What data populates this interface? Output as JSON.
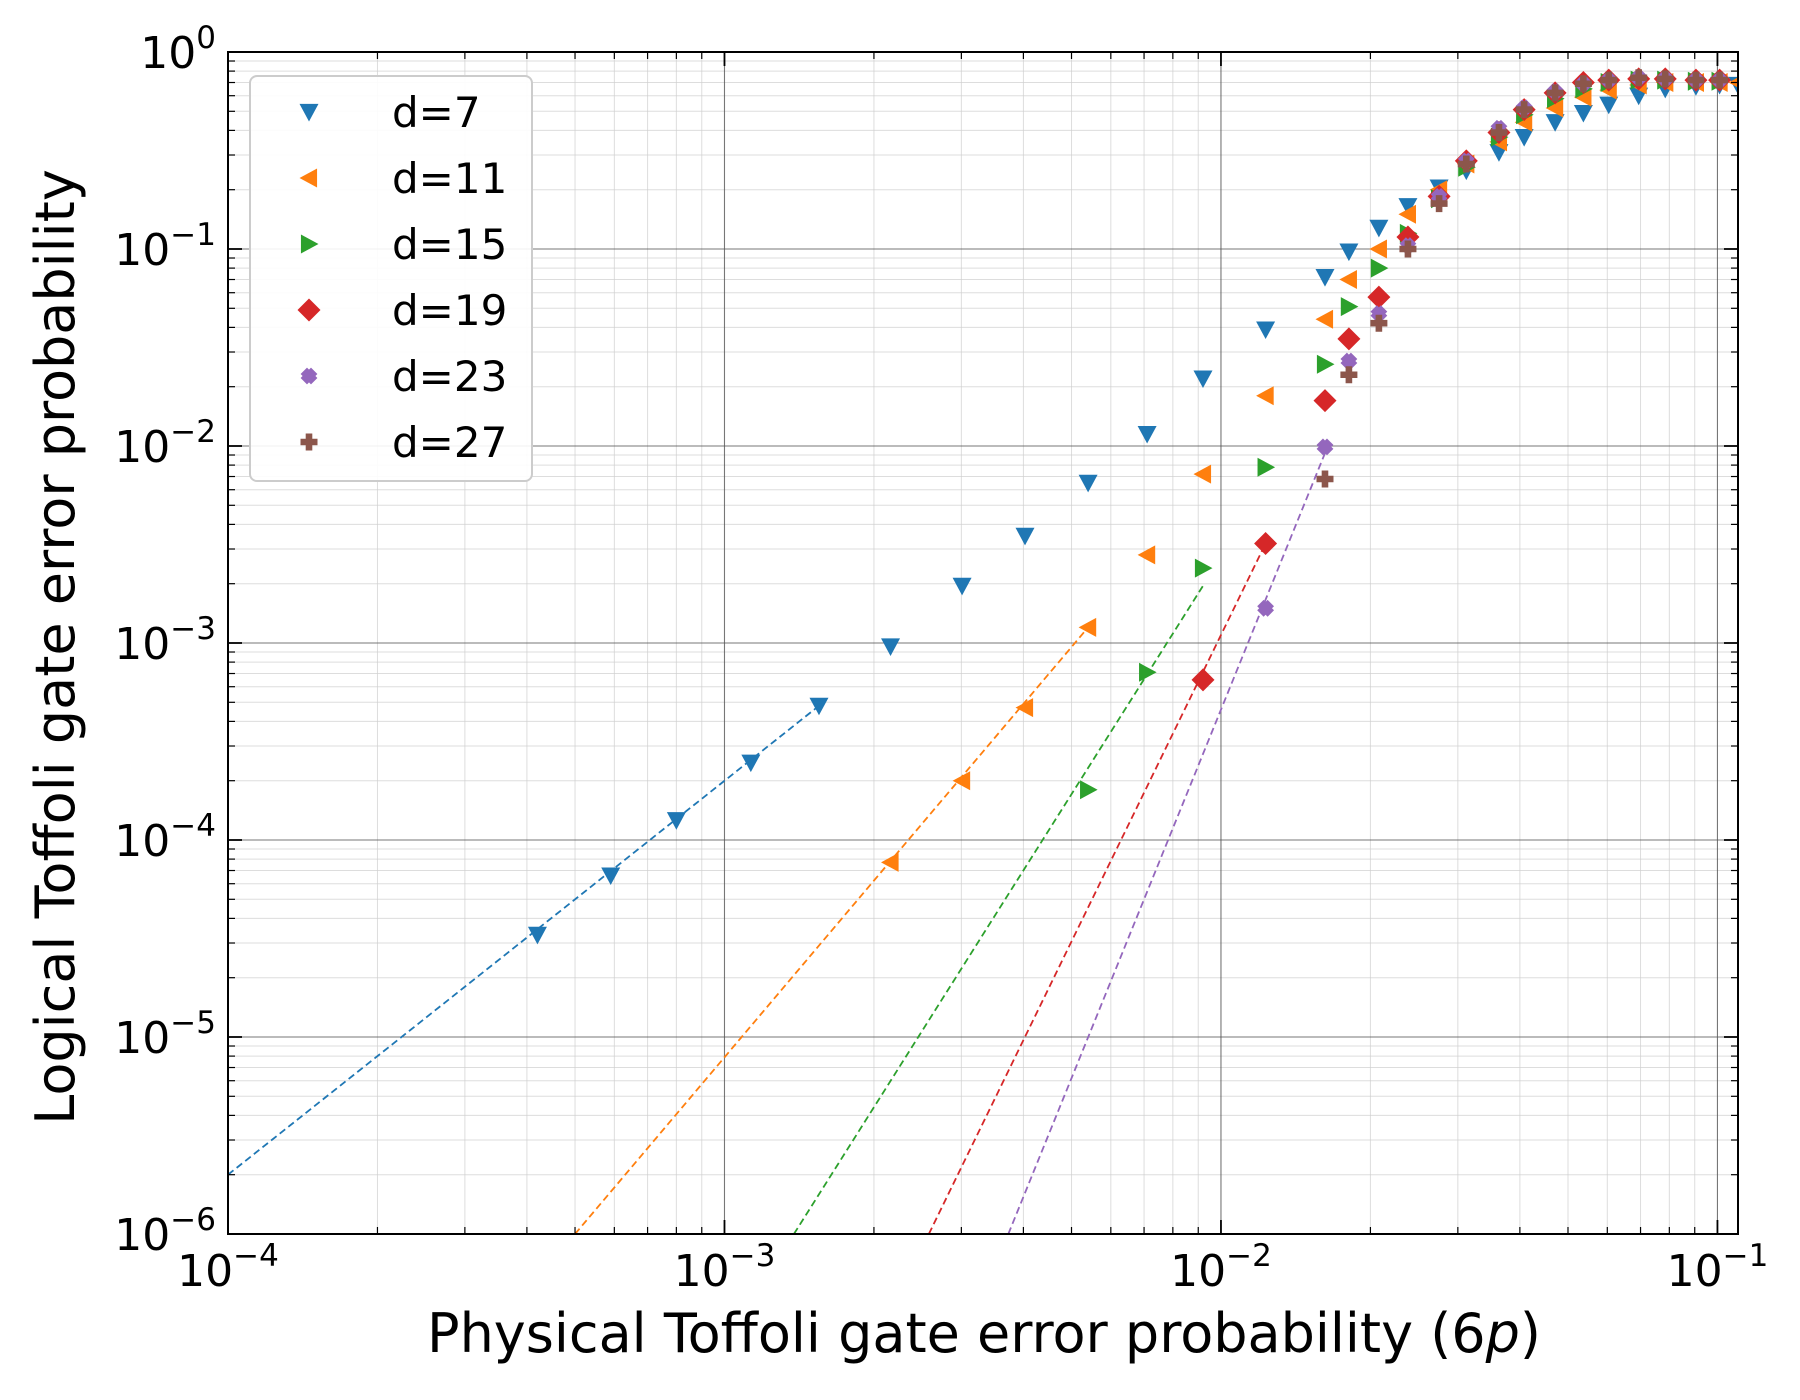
{
  "chart_data": {
    "type": "scatter",
    "title": "",
    "xlabel": "Physical Toffoli gate error probability (6",
    "xlabel_var": "p",
    "xlabel_end": ")",
    "ylabel": "Logical Toffoli gate error probability",
    "x_scale": "log",
    "y_scale": "log",
    "xlim": [
      0.0001,
      0.11
    ],
    "ylim": [
      1e-06,
      1
    ],
    "x_ticks": [
      {
        "base": "10",
        "exp": "−4"
      },
      {
        "base": "10",
        "exp": "−3"
      },
      {
        "base": "10",
        "exp": "−2"
      },
      {
        "base": "10",
        "exp": "−1"
      }
    ],
    "y_ticks": [
      {
        "base": "10",
        "exp": "−6"
      },
      {
        "base": "10",
        "exp": "−5"
      },
      {
        "base": "10",
        "exp": "−4"
      },
      {
        "base": "10",
        "exp": "−3"
      },
      {
        "base": "10",
        "exp": "−2"
      },
      {
        "base": "10",
        "exp": "−1"
      },
      {
        "base": "10",
        "exp": "0"
      }
    ],
    "grid": true,
    "legend_position": "top-left",
    "series": [
      {
        "name": "d=7",
        "color": "#1f77b4",
        "marker": "triangle-down",
        "x": [
          0.00042,
          0.00059,
          0.0008,
          0.00113,
          0.00155,
          0.00216,
          0.00301,
          0.00403,
          0.0054,
          0.0071,
          0.0092,
          0.0123,
          0.0162,
          0.0181,
          0.0208,
          0.0238,
          0.0275,
          0.0312,
          0.0363,
          0.0408,
          0.0471,
          0.0537,
          0.0604,
          0.0694,
          0.0785,
          0.0905,
          0.101,
          0.11
        ],
        "y": [
          3.3e-05,
          6.6e-05,
          0.000126,
          0.000247,
          0.00048,
          0.00096,
          0.00195,
          0.0035,
          0.0065,
          0.0115,
          0.022,
          0.039,
          0.072,
          0.097,
          0.128,
          0.165,
          0.205,
          0.25,
          0.31,
          0.37,
          0.44,
          0.49,
          0.54,
          0.6,
          0.65,
          0.67,
          0.68,
          0.68
        ]
      },
      {
        "name": "d=11",
        "color": "#ff7f0e",
        "marker": "triangle-left",
        "x": [
          0.00216,
          0.00301,
          0.00403,
          0.0054,
          0.0071,
          0.0092,
          0.0123,
          0.0162,
          0.0181,
          0.0208,
          0.0238,
          0.0275,
          0.0312,
          0.0363,
          0.0408,
          0.0471,
          0.0537,
          0.0604,
          0.0694,
          0.0785,
          0.0905,
          0.101,
          0.11
        ],
        "y": [
          7.7e-05,
          0.0002,
          0.00047,
          0.0012,
          0.0028,
          0.0072,
          0.018,
          0.044,
          0.07,
          0.1,
          0.15,
          0.2,
          0.27,
          0.35,
          0.44,
          0.52,
          0.59,
          0.64,
          0.68,
          0.7,
          0.7,
          0.7,
          0.7
        ]
      },
      {
        "name": "d=15",
        "color": "#2ca02c",
        "marker": "triangle-right",
        "x": [
          0.0054,
          0.0071,
          0.0092,
          0.0123,
          0.0162,
          0.0181,
          0.0208,
          0.0238,
          0.0275,
          0.0312,
          0.0363,
          0.0408,
          0.0471,
          0.0537,
          0.0604,
          0.0694,
          0.0785,
          0.0905,
          0.101
        ],
        "y": [
          0.00018,
          0.00071,
          0.0024,
          0.0078,
          0.026,
          0.051,
          0.08,
          0.12,
          0.18,
          0.26,
          0.37,
          0.48,
          0.58,
          0.65,
          0.7,
          0.72,
          0.72,
          0.71,
          0.71
        ]
      },
      {
        "name": "d=19",
        "color": "#d62728",
        "marker": "diamond",
        "x": [
          0.0092,
          0.0123,
          0.0162,
          0.0181,
          0.0208,
          0.0238,
          0.0275,
          0.0312,
          0.0363,
          0.0408,
          0.0471,
          0.0537,
          0.0604,
          0.0694,
          0.0785,
          0.0905,
          0.101
        ],
        "y": [
          0.00065,
          0.0032,
          0.017,
          0.035,
          0.057,
          0.115,
          0.185,
          0.28,
          0.39,
          0.51,
          0.62,
          0.7,
          0.72,
          0.73,
          0.73,
          0.72,
          0.72
        ]
      },
      {
        "name": "d=23",
        "color": "#9467bd",
        "marker": "x",
        "x": [
          0.0123,
          0.0162,
          0.0181,
          0.0208,
          0.0238,
          0.0275,
          0.0312,
          0.0363,
          0.0408,
          0.0471,
          0.0537,
          0.0604,
          0.0694,
          0.0785,
          0.0905,
          0.101
        ],
        "y": [
          0.0015,
          0.0099,
          0.027,
          0.047,
          0.104,
          0.185,
          0.28,
          0.41,
          0.52,
          0.63,
          0.69,
          0.72,
          0.74,
          0.73,
          0.72,
          0.72
        ]
      },
      {
        "name": "d=27",
        "color": "#8c564b",
        "marker": "plus",
        "x": [
          0.0162,
          0.0181,
          0.0208,
          0.0238,
          0.0275,
          0.0312,
          0.0363,
          0.0408,
          0.0471,
          0.0537,
          0.0604,
          0.0694,
          0.0785,
          0.0905,
          0.101
        ],
        "y": [
          0.0068,
          0.023,
          0.042,
          0.1,
          0.17,
          0.27,
          0.39,
          0.51,
          0.62,
          0.69,
          0.72,
          0.74,
          0.73,
          0.72,
          0.72
        ]
      }
    ],
    "fits": [
      {
        "series": "d=7",
        "color": "#1f77b4",
        "x": [
          0.0001,
          0.00155
        ],
        "y": [
          2e-06,
          0.00048
        ]
      },
      {
        "series": "d=11",
        "color": "#ff7f0e",
        "x": [
          0.0005,
          0.0054
        ],
        "y": [
          1e-06,
          0.0012
        ]
      },
      {
        "series": "d=15",
        "color": "#2ca02c",
        "x": [
          0.00138,
          0.0092
        ],
        "y": [
          1e-06,
          0.00195
        ]
      },
      {
        "series": "d=19",
        "color": "#d62728",
        "x": [
          0.00258,
          0.0123
        ],
        "y": [
          1e-06,
          0.0032
        ]
      },
      {
        "series": "d=23",
        "color": "#9467bd",
        "x": [
          0.00373,
          0.0162
        ],
        "y": [
          1e-06,
          0.0092
        ]
      }
    ]
  }
}
